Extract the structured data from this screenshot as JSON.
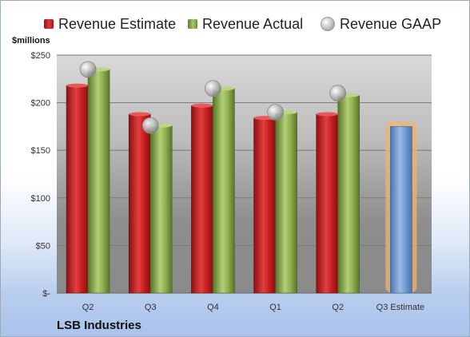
{
  "legend": {
    "estimate_label": "Revenue Estimate",
    "actual_label": "Revenue Actual",
    "gaap_label": "Revenue GAAP"
  },
  "units_label": "$millions",
  "company": "LSB Industries",
  "colors": {
    "estimate": "#c81e22",
    "actual": "#8fae4f",
    "forecast": "#6f9ad3",
    "forecast_glow": "#f3b36b",
    "gaap": "#b8b8b8"
  },
  "chart_data": {
    "type": "bar",
    "categories": [
      "Q2",
      "Q3",
      "Q4",
      "Q1",
      "Q2",
      "Q3 Estimate"
    ],
    "series": [
      {
        "name": "Revenue Estimate",
        "values": [
          218,
          188,
          197,
          184,
          188,
          null
        ]
      },
      {
        "name": "Revenue Actual",
        "values": [
          235,
          176,
          215,
          190,
          208,
          175
        ]
      },
      {
        "name": "Revenue GAAP",
        "values": [
          235,
          176,
          215,
          190,
          210,
          null
        ]
      }
    ],
    "ylim": [
      0,
      250
    ],
    "yticks": [
      0,
      50,
      100,
      150,
      200,
      250
    ],
    "ytick_labels": [
      "$-",
      "$50",
      "$100",
      "$150",
      "$200",
      "$250"
    ],
    "grid": true,
    "legend_position": "top"
  }
}
